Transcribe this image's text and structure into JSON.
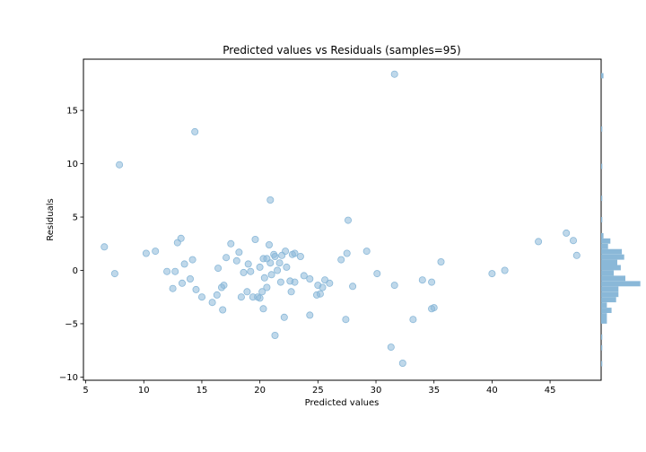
{
  "chart_data": {
    "type": "scatter",
    "title": "Predicted values vs Residuals (samples=95)",
    "xlabel": "Predicted values",
    "ylabel": "Residuals",
    "xlim": [
      4.8,
      49.4
    ],
    "ylim": [
      -10.3,
      19.8
    ],
    "xticks": [
      5,
      10,
      15,
      20,
      25,
      30,
      35,
      40,
      45
    ],
    "yticks": [
      -10,
      -5,
      0,
      5,
      10,
      15
    ],
    "grid": false,
    "marker_color": "#8ab8d8",
    "histogram_color": "#8ab8d8",
    "histogram_bin_width": 0.5,
    "histogram_xmax": 28,
    "points": [
      [
        31.6,
        18.4
      ],
      [
        14.4,
        13.0
      ],
      [
        7.9,
        9.9
      ],
      [
        20.9,
        6.6
      ],
      [
        27.6,
        4.7
      ],
      [
        46.4,
        3.5
      ],
      [
        47.0,
        2.8
      ],
      [
        13.2,
        3.0
      ],
      [
        19.6,
        2.9
      ],
      [
        20.8,
        2.4
      ],
      [
        12.9,
        2.6
      ],
      [
        17.5,
        2.5
      ],
      [
        44.0,
        2.7
      ],
      [
        6.6,
        2.2
      ],
      [
        11.0,
        1.8
      ],
      [
        22.2,
        1.8
      ],
      [
        29.2,
        1.8
      ],
      [
        10.2,
        1.6
      ],
      [
        18.2,
        1.7
      ],
      [
        21.2,
        1.5
      ],
      [
        21.3,
        1.3
      ],
      [
        22.8,
        1.5
      ],
      [
        23.0,
        1.6
      ],
      [
        23.5,
        1.3
      ],
      [
        17.1,
        1.2
      ],
      [
        20.3,
        1.1
      ],
      [
        20.6,
        1.1
      ],
      [
        27.0,
        1.0
      ],
      [
        47.3,
        1.4
      ],
      [
        27.5,
        1.6
      ],
      [
        14.2,
        1.0
      ],
      [
        21.7,
        0.7
      ],
      [
        20.9,
        0.7
      ],
      [
        13.5,
        0.6
      ],
      [
        19.0,
        0.6
      ],
      [
        35.6,
        0.8
      ],
      [
        20.0,
        0.3
      ],
      [
        22.3,
        0.3
      ],
      [
        16.4,
        0.2
      ],
      [
        21.5,
        0.0
      ],
      [
        12.0,
        -0.1
      ],
      [
        12.7,
        -0.1
      ],
      [
        18.6,
        -0.2
      ],
      [
        19.2,
        -0.1
      ],
      [
        41.1,
        0.0
      ],
      [
        7.5,
        -0.3
      ],
      [
        21.0,
        -0.4
      ],
      [
        30.1,
        -0.3
      ],
      [
        40.0,
        -0.3
      ],
      [
        14.0,
        -0.8
      ],
      [
        20.4,
        -0.7
      ],
      [
        24.3,
        -0.8
      ],
      [
        25.6,
        -0.9
      ],
      [
        34.0,
        -0.9
      ],
      [
        13.3,
        -1.2
      ],
      [
        21.8,
        -1.1
      ],
      [
        22.6,
        -1.0
      ],
      [
        23.0,
        -1.1
      ],
      [
        25.0,
        -1.4
      ],
      [
        25.4,
        -1.6
      ],
      [
        34.8,
        -1.1
      ],
      [
        16.9,
        -1.4
      ],
      [
        16.7,
        -1.6
      ],
      [
        28.0,
        -1.5
      ],
      [
        31.6,
        -1.4
      ],
      [
        12.5,
        -1.7
      ],
      [
        14.5,
        -1.8
      ],
      [
        20.6,
        -1.6
      ],
      [
        18.9,
        -2.0
      ],
      [
        20.2,
        -2.0
      ],
      [
        22.7,
        -2.0
      ],
      [
        24.9,
        -2.3
      ],
      [
        25.2,
        -2.2
      ],
      [
        15.0,
        -2.5
      ],
      [
        16.3,
        -2.3
      ],
      [
        18.4,
        -2.5
      ],
      [
        19.4,
        -2.5
      ],
      [
        19.8,
        -2.5
      ],
      [
        20.0,
        -2.6
      ],
      [
        15.9,
        -3.0
      ],
      [
        16.8,
        -3.7
      ],
      [
        20.3,
        -3.6
      ],
      [
        34.8,
        -3.6
      ],
      [
        22.1,
        -4.4
      ],
      [
        24.3,
        -4.2
      ],
      [
        27.4,
        -4.6
      ],
      [
        33.2,
        -4.6
      ],
      [
        21.3,
        -6.1
      ],
      [
        31.3,
        -7.2
      ],
      [
        32.3,
        -8.7
      ],
      [
        35.0,
        -3.5
      ],
      [
        21.9,
        1.4
      ],
      [
        26.0,
        -1.2
      ],
      [
        18.0,
        0.9
      ],
      [
        23.8,
        -0.5
      ]
    ],
    "histogram": [
      {
        "bin_start": 18.0,
        "count": 2
      },
      {
        "bin_start": 13.0,
        "count": 1
      },
      {
        "bin_start": 9.5,
        "count": 1
      },
      {
        "bin_start": 6.5,
        "count": 1
      },
      {
        "bin_start": 4.5,
        "count": 1
      },
      {
        "bin_start": 3.0,
        "count": 2
      },
      {
        "bin_start": 2.5,
        "count": 8
      },
      {
        "bin_start": 2.0,
        "count": 6
      },
      {
        "bin_start": 1.5,
        "count": 18
      },
      {
        "bin_start": 1.0,
        "count": 20
      },
      {
        "bin_start": 0.5,
        "count": 14
      },
      {
        "bin_start": 0.0,
        "count": 17
      },
      {
        "bin_start": -0.5,
        "count": 11
      },
      {
        "bin_start": -1.0,
        "count": 21
      },
      {
        "bin_start": -1.5,
        "count": 34
      },
      {
        "bin_start": -2.0,
        "count": 15
      },
      {
        "bin_start": -2.5,
        "count": 15
      },
      {
        "bin_start": -3.0,
        "count": 13
      },
      {
        "bin_start": -3.5,
        "count": 5
      },
      {
        "bin_start": -4.0,
        "count": 9
      },
      {
        "bin_start": -4.5,
        "count": 5
      },
      {
        "bin_start": -5.0,
        "count": 5
      },
      {
        "bin_start": -6.5,
        "count": 1
      },
      {
        "bin_start": -7.5,
        "count": 1
      },
      {
        "bin_start": -9.0,
        "count": 1
      }
    ]
  }
}
